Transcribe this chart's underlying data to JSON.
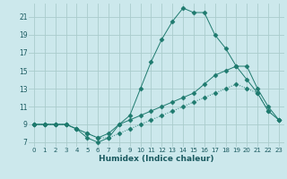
{
  "xlabel": "Humidex (Indice chaleur)",
  "bg_color": "#cce8ec",
  "grid_color": "#aacccc",
  "line_color": "#1e7a6e",
  "xlim": [
    -0.5,
    23.5
  ],
  "ylim": [
    6.5,
    22.5
  ],
  "xticks": [
    0,
    1,
    2,
    3,
    4,
    5,
    6,
    7,
    8,
    9,
    10,
    11,
    12,
    13,
    14,
    15,
    16,
    17,
    18,
    19,
    20,
    21,
    22,
    23
  ],
  "yticks": [
    7,
    9,
    11,
    13,
    15,
    17,
    19,
    21
  ],
  "line_top_x": [
    0,
    1,
    2,
    3,
    4,
    5,
    6,
    7,
    8,
    9,
    10,
    11,
    12,
    13,
    14,
    15,
    16,
    17,
    18,
    19,
    20,
    21,
    22,
    23
  ],
  "line_top_y": [
    9,
    9,
    9,
    9,
    8.5,
    7.5,
    7,
    7.5,
    9,
    10,
    13,
    16,
    18.5,
    20.5,
    22,
    21.5,
    21.5,
    19,
    17.5,
    15.5,
    14,
    12.5,
    10.5,
    9.5
  ],
  "line_mid_x": [
    0,
    1,
    2,
    3,
    4,
    5,
    6,
    7,
    8,
    9,
    10,
    11,
    12,
    13,
    14,
    15,
    16,
    17,
    18,
    19,
    20,
    21,
    22,
    23
  ],
  "line_mid_y": [
    9,
    9,
    9,
    9,
    8.5,
    8,
    7.5,
    8,
    9,
    9.5,
    10,
    10.5,
    11,
    11.5,
    12,
    12.5,
    13.5,
    14.5,
    15,
    15.5,
    15.5,
    13,
    11,
    9.5
  ],
  "line_bot_x": [
    0,
    1,
    2,
    3,
    4,
    5,
    6,
    7,
    8,
    9,
    10,
    11,
    12,
    13,
    14,
    15,
    16,
    17,
    18,
    19,
    20,
    21,
    22,
    23
  ],
  "line_bot_y": [
    9,
    9,
    9,
    9,
    8.5,
    8,
    7.5,
    7.5,
    8,
    8.5,
    9,
    9.5,
    10,
    10.5,
    11,
    11.5,
    12,
    12.5,
    13,
    13.5,
    13,
    12.5,
    10.5,
    9.5
  ]
}
